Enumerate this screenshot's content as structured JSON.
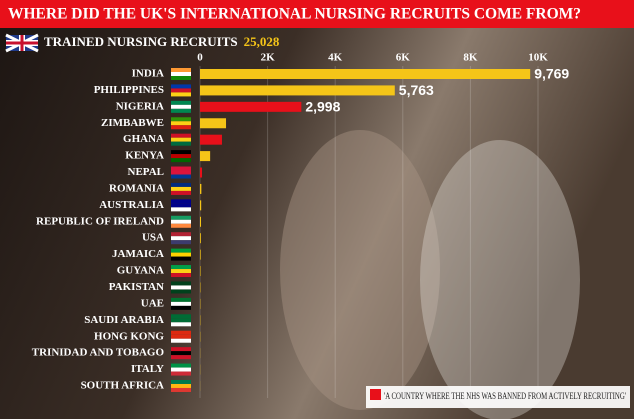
{
  "chart_data": {
    "type": "bar",
    "orientation": "horizontal",
    "title": "WHERE DID THE UK'S INTERNATIONAL NURSING RECRUITS COME FROM?",
    "subtitle": "TRAINED NURSING RECRUITS",
    "total": "25,028",
    "categories": [
      "INDIA",
      "PHILIPPINES",
      "NIGERIA",
      "ZIMBABWE",
      "GHANA",
      "KENYA",
      "NEPAL",
      "ROMANIA",
      "AUSTRALIA",
      "REPUBLIC OF IRELAND",
      "USA",
      "JAMAICA",
      "GUYANA",
      "PAKISTAN",
      "UAE",
      "SAUDI ARABIA",
      "HONG KONG",
      "TRINIDAD AND TOBAGO",
      "ITALY",
      "SOUTH AFRICA"
    ],
    "values": [
      9769,
      5763,
      2998,
      770,
      650,
      300,
      60,
      40,
      35,
      30,
      25,
      20,
      15,
      12,
      10,
      10,
      8,
      5,
      5,
      3
    ],
    "value_labels": [
      "9,769",
      "5,763",
      "2,998",
      null,
      null,
      null,
      null,
      null,
      null,
      null,
      null,
      null,
      null,
      null,
      null,
      null,
      null,
      null,
      null,
      null
    ],
    "colors": [
      "#f5c518",
      "#f5c518",
      "#e8101a",
      "#f5c518",
      "#e8101a",
      "#f5c518",
      "#e8101a",
      "#f5c518",
      "#f5c518",
      "#f5c518",
      "#f5c518",
      "#f5c518",
      "#f5c518",
      "#f5c518",
      "#f5c518",
      "#f5c518",
      "#f5c518",
      "#f5c518",
      "#f5c518",
      "#f5c518"
    ],
    "xlim": [
      0,
      10000
    ],
    "xticks": [
      0,
      {
        "value": 2000,
        "label": "2K"
      },
      {
        "value": 4000,
        "label": "4K"
      },
      {
        "value": 6000,
        "label": "6K"
      },
      {
        "value": 8000,
        "label": "8K"
      },
      {
        "value": 10000,
        "label": "10K"
      }
    ],
    "grid": true,
    "legend": {
      "text": "'A COUNTRY WHERE THE NHS WAS BANNED FROM ACTIVELY RECRUITING'",
      "color": "#e8101a",
      "position": "bottom-right"
    }
  }
}
